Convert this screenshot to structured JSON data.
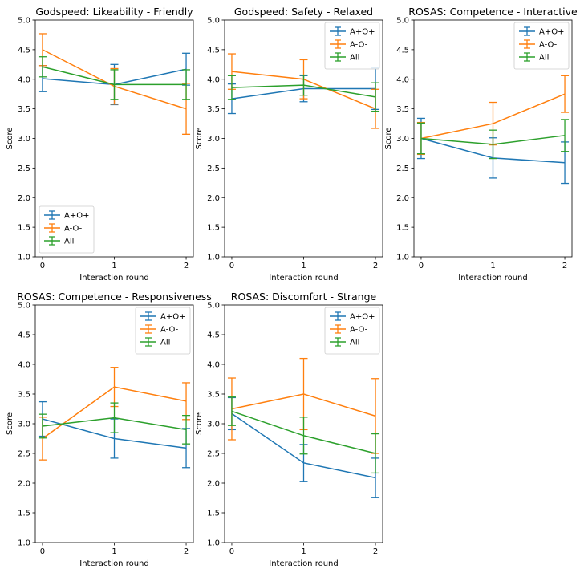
{
  "chart_data": [
    {
      "type": "line",
      "title": "Godspeed: Likeability - Friendly",
      "xlabel": "Interaction round",
      "ylabel": "Score",
      "x": [
        0,
        1,
        2
      ],
      "ylim": [
        1.0,
        5.0
      ],
      "xticks": [
        "0",
        "1",
        "2"
      ],
      "yticks": [
        "1.0",
        "1.5",
        "2.0",
        "2.5",
        "3.0",
        "3.5",
        "4.0",
        "4.5",
        "5.0"
      ],
      "legend": "lower-left",
      "series": [
        {
          "name": "A+O+",
          "color": "#1f77b4",
          "values": [
            4.01,
            3.91,
            4.17
          ],
          "errors": [
            0.22,
            0.34,
            0.27
          ]
        },
        {
          "name": "A-O-",
          "color": "#ff7f0e",
          "values": [
            4.5,
            3.88,
            3.5
          ],
          "errors": [
            0.27,
            0.3,
            0.43
          ]
        },
        {
          "name": "All",
          "color": "#2ca02c",
          "values": [
            4.21,
            3.91,
            3.91
          ],
          "errors": [
            0.17,
            0.25,
            0.25
          ]
        }
      ]
    },
    {
      "type": "line",
      "title": "Godspeed: Safety - Relaxed",
      "xlabel": "Interaction round",
      "ylabel": "Score",
      "x": [
        0,
        1,
        2
      ],
      "ylim": [
        1.0,
        5.0
      ],
      "xticks": [
        "0",
        "1",
        "2"
      ],
      "yticks": [
        "1.0",
        "1.5",
        "2.0",
        "2.5",
        "3.0",
        "3.5",
        "4.0",
        "4.5",
        "5.0"
      ],
      "legend": "top-right",
      "series": [
        {
          "name": "A+O+",
          "color": "#1f77b4",
          "values": [
            3.67,
            3.84,
            3.84
          ],
          "errors": [
            0.25,
            0.22,
            0.35
          ]
        },
        {
          "name": "A-O-",
          "color": "#ff7f0e",
          "values": [
            4.13,
            4.0,
            3.5
          ],
          "errors": [
            0.3,
            0.33,
            0.33
          ]
        },
        {
          "name": "All",
          "color": "#2ca02c",
          "values": [
            3.86,
            3.9,
            3.7
          ],
          "errors": [
            0.2,
            0.17,
            0.24
          ]
        }
      ]
    },
    {
      "type": "line",
      "title": "ROSAS: Competence - Interactive",
      "xlabel": "Interaction round",
      "ylabel": "Score",
      "x": [
        0,
        1,
        2
      ],
      "ylim": [
        1.0,
        5.0
      ],
      "xticks": [
        "0",
        "1",
        "2"
      ],
      "yticks": [
        "1.0",
        "1.5",
        "2.0",
        "2.5",
        "3.0",
        "3.5",
        "4.0",
        "4.5",
        "5.0"
      ],
      "legend": "top-right",
      "series": [
        {
          "name": "A+O+",
          "color": "#1f77b4",
          "values": [
            3.0,
            2.67,
            2.59
          ],
          "errors": [
            0.34,
            0.34,
            0.35
          ]
        },
        {
          "name": "A-O-",
          "color": "#ff7f0e",
          "values": [
            3.0,
            3.25,
            3.75
          ],
          "errors": [
            0.27,
            0.36,
            0.31
          ]
        },
        {
          "name": "All",
          "color": "#2ca02c",
          "values": [
            3.0,
            2.9,
            3.05
          ],
          "errors": [
            0.26,
            0.24,
            0.27
          ]
        }
      ]
    },
    {
      "type": "line",
      "title": "ROSAS: Competence - Responsiveness",
      "xlabel": "Interaction round",
      "ylabel": "Score",
      "x": [
        0,
        1,
        2
      ],
      "ylim": [
        1.0,
        5.0
      ],
      "xticks": [
        "0",
        "1",
        "2"
      ],
      "yticks": [
        "1.0",
        "1.5",
        "2.0",
        "2.5",
        "3.0",
        "3.5",
        "4.0",
        "4.5",
        "5.0"
      ],
      "legend": "top-right",
      "series": [
        {
          "name": "A+O+",
          "color": "#1f77b4",
          "values": [
            3.08,
            2.75,
            2.59
          ],
          "errors": [
            0.29,
            0.33,
            0.33
          ]
        },
        {
          "name": "A-O-",
          "color": "#ff7f0e",
          "values": [
            2.75,
            3.62,
            3.38
          ],
          "errors": [
            0.36,
            0.33,
            0.31
          ]
        },
        {
          "name": "All",
          "color": "#2ca02c",
          "values": [
            2.96,
            3.1,
            2.9
          ],
          "errors": [
            0.2,
            0.25,
            0.24
          ]
        }
      ]
    },
    {
      "type": "line",
      "title": "ROSAS: Discomfort - Strange",
      "xlabel": "Interaction round",
      "ylabel": "Score",
      "x": [
        0,
        1,
        2
      ],
      "ylim": [
        1.0,
        5.0
      ],
      "xticks": [
        "0",
        "1",
        "2"
      ],
      "yticks": [
        "1.0",
        "1.5",
        "2.0",
        "2.5",
        "3.0",
        "3.5",
        "4.0",
        "4.5",
        "5.0"
      ],
      "legend": "top-right",
      "series": [
        {
          "name": "A+O+",
          "color": "#1f77b4",
          "values": [
            3.17,
            2.34,
            2.09
          ],
          "errors": [
            0.27,
            0.31,
            0.33
          ]
        },
        {
          "name": "A-O-",
          "color": "#ff7f0e",
          "values": [
            3.25,
            3.5,
            3.13
          ],
          "errors": [
            0.52,
            0.6,
            0.63
          ]
        },
        {
          "name": "All",
          "color": "#2ca02c",
          "values": [
            3.21,
            2.8,
            2.5
          ],
          "errors": [
            0.24,
            0.31,
            0.33
          ]
        }
      ]
    }
  ]
}
